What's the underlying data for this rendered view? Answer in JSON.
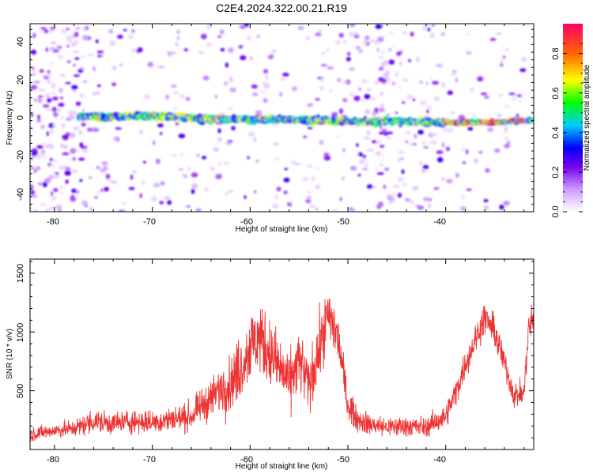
{
  "figure": {
    "title": "C2E4.2024.322.00.21.R19"
  },
  "chart_data": [
    {
      "type": "heatmap",
      "title": "C2E4.2024.322.00.21.R19",
      "xlabel": "Height of straight line (km)",
      "ylabel": "Frequency (Hz)",
      "xlim": [
        -82.5,
        -31
      ],
      "ylim": [
        -50,
        49
      ],
      "x_ticks": [
        "-80",
        "-70",
        "-60",
        "-50",
        "-40"
      ],
      "y_ticks": [
        "-40",
        "-20",
        "0",
        "20",
        "40"
      ],
      "colorbar": {
        "label": "Normalized spectral amplitude",
        "range": [
          0.0,
          0.95
        ],
        "ticks": [
          "0.0",
          "0.2",
          "0.4",
          "0.6",
          "0.8"
        ],
        "colormap": [
          "#ffffff",
          "#cc99ff",
          "#7700ee",
          "#0000ff",
          "#00ccff",
          "#00ff00",
          "#ffff00",
          "#ff6600",
          "#ff0066"
        ]
      },
      "signal_band": {
        "center_hz": [
          [
            -77.5,
            0
          ],
          [
            -70,
            0.5
          ],
          [
            -65,
            -1
          ],
          [
            -60,
            -1.5
          ],
          [
            -55,
            -1.5
          ],
          [
            -50,
            -2.5
          ],
          [
            -45,
            -2.5
          ],
          [
            -40,
            -3
          ],
          [
            -35,
            -3
          ],
          [
            -32,
            -2
          ]
        ],
        "peak_amplitude": 0.9
      },
      "grid": false
    },
    {
      "type": "line",
      "xlabel": "Height of straight line (km)",
      "ylabel": "SNR (10 * v/v)",
      "xlim": [
        -82.5,
        -31
      ],
      "ylim": [
        0,
        1620
      ],
      "x_ticks": [
        "-80",
        "-70",
        "-60",
        "-50",
        "-40"
      ],
      "y_ticks": [
        "500",
        "1000",
        "1500"
      ],
      "series": [
        {
          "color": "#ee3333",
          "x": [
            -82.5,
            -80,
            -78,
            -76,
            -74,
            -72,
            -70,
            -68,
            -66,
            -65,
            -64,
            -63,
            -62,
            -61,
            -60,
            -59,
            -58,
            -57,
            -56,
            -55,
            -54,
            -53,
            -52,
            -51,
            -50,
            -49,
            -48,
            -46,
            -44,
            -42,
            -40,
            -39,
            -38,
            -37,
            -36,
            -35,
            -34,
            -33,
            -32,
            -31.5,
            -31
          ],
          "mean": [
            130,
            160,
            180,
            240,
            220,
            240,
            230,
            260,
            280,
            370,
            430,
            520,
            560,
            700,
            880,
            960,
            820,
            700,
            560,
            760,
            540,
            820,
            1150,
            950,
            380,
            260,
            220,
            190,
            200,
            190,
            280,
            480,
            720,
            930,
            1130,
            1000,
            740,
            460,
            480,
            1040,
            1100
          ],
          "noise_amplitude": [
            90,
            100,
            110,
            160,
            150,
            160,
            150,
            170,
            180,
            220,
            260,
            320,
            360,
            420,
            470,
            480,
            450,
            420,
            380,
            420,
            360,
            420,
            380,
            360,
            200,
            160,
            150,
            130,
            140,
            130,
            160,
            180,
            190,
            200,
            210,
            210,
            190,
            160,
            160,
            260,
            280
          ]
        }
      ],
      "grid": false
    }
  ]
}
